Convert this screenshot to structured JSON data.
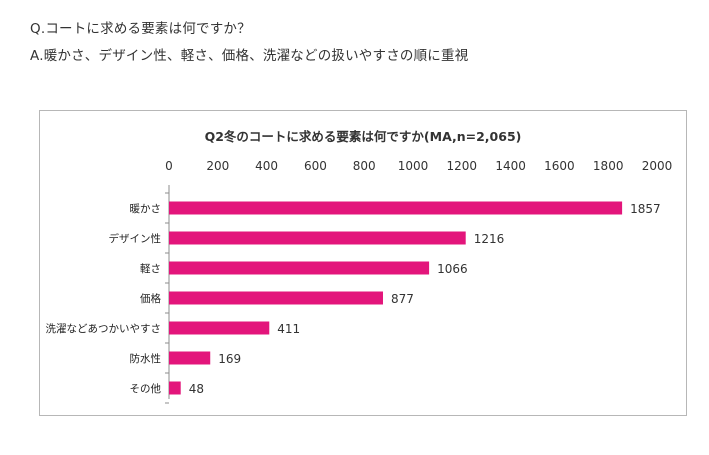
{
  "intro": {
    "question": "Q.コートに求める要素は何ですか？",
    "answer": "A.暖かさ、デザイン性、軽さ、価格、洗濯などの扱いやすさの順に重視"
  },
  "chart_data": {
    "type": "bar",
    "orientation": "horizontal",
    "title": "Q2冬のコートに求める要素は何ですか(MA,n=2,065)",
    "categories": [
      "暖かさ",
      "デザイン性",
      "軽さ",
      "価格",
      "洗濯などあつかいやすさ",
      "防水性",
      "その他"
    ],
    "values": [
      1857,
      1216,
      1066,
      877,
      411,
      169,
      48
    ],
    "xlim": [
      0,
      2000
    ],
    "xticks": [
      "0",
      "200",
      "400",
      "600",
      "800",
      "1000",
      "1200",
      "1400",
      "1600",
      "1800",
      "2000"
    ],
    "tick_axis_position": "top",
    "grid": false,
    "legend": "none",
    "bar_color": "#e3157b"
  }
}
